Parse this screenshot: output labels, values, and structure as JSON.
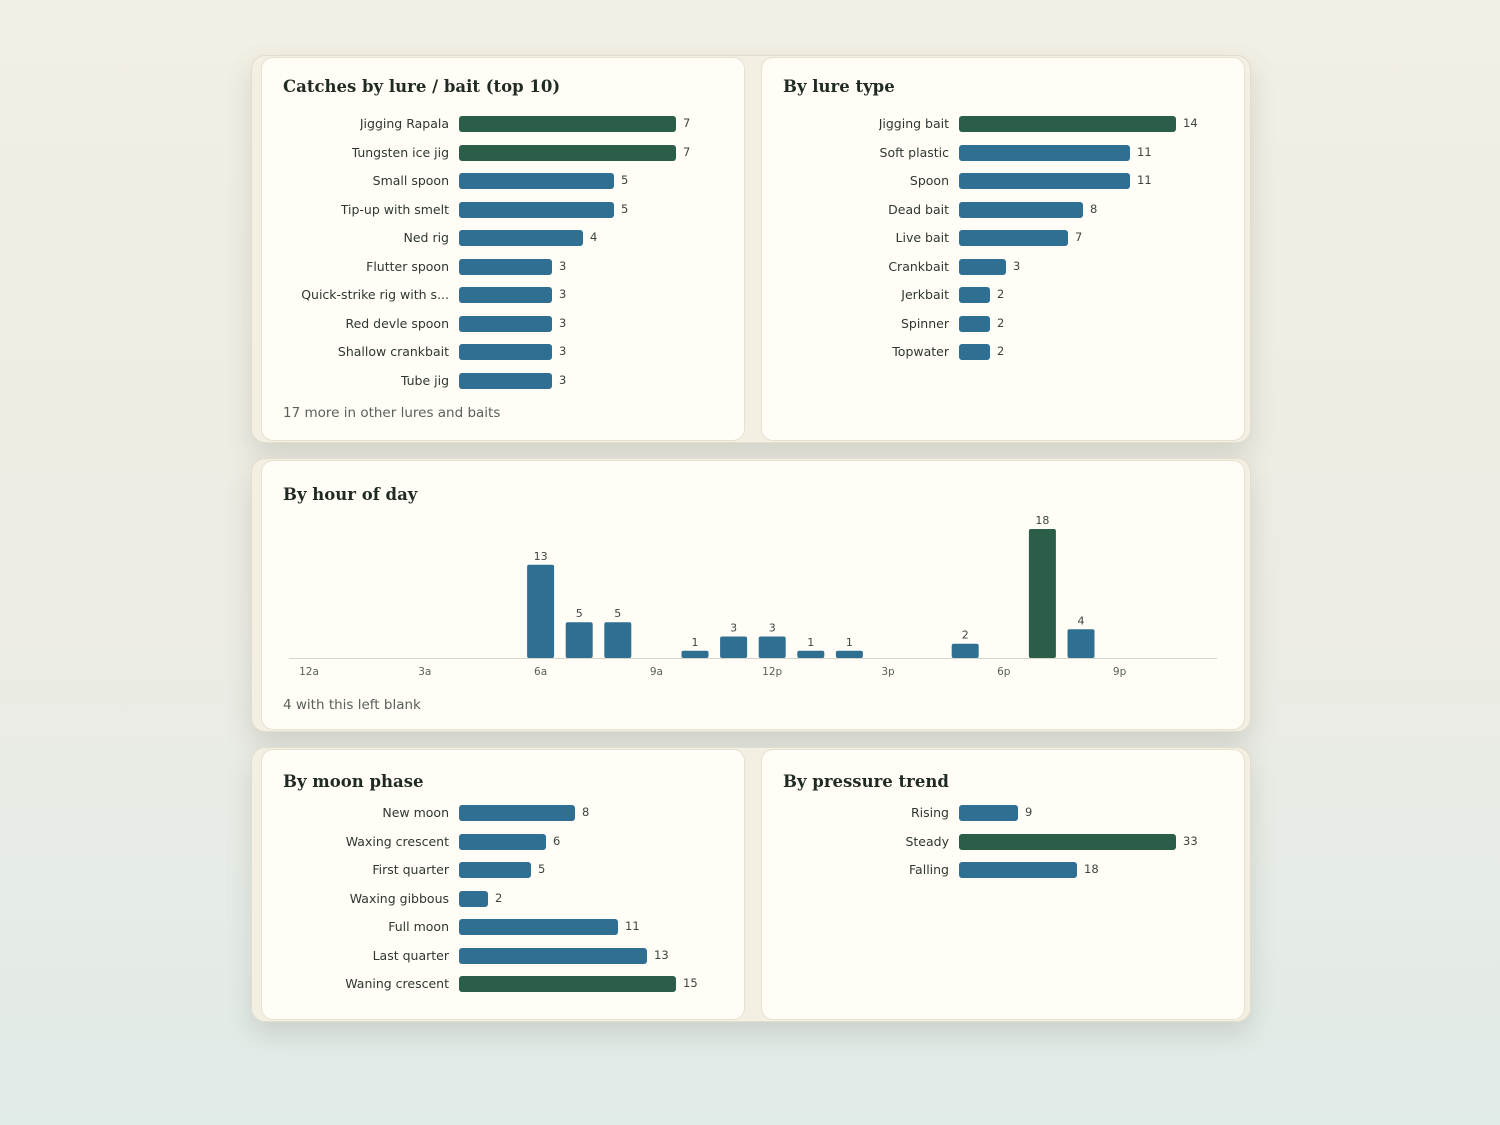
{
  "colors": {
    "bar": "#2f6f91",
    "bar_top": "#2b5e48",
    "card": "#fffdf6",
    "background": "#f2efe4"
  },
  "lure_card": {
    "title": "Catches by lure / bait (top 10)",
    "note": "17 more in other lures and baits"
  },
  "lure_type_card": {
    "title": "By lure type"
  },
  "hour_card": {
    "title": "By hour of day",
    "note": "4 with this left blank"
  },
  "moon_card": {
    "title": "By moon phase"
  },
  "pressure_card": {
    "title": "By pressure trend"
  },
  "chart_data": [
    {
      "id": "lure",
      "type": "bar",
      "orientation": "horizontal",
      "title": "Catches by lure / bait (top 10)",
      "categories": [
        "Jigging Rapala",
        "Tungsten ice jig",
        "Small spoon",
        "Tip-up with smelt",
        "Ned rig",
        "Flutter spoon",
        "Quick-strike rig with s...",
        "Red devle spoon",
        "Shallow crankbait",
        "Tube jig"
      ],
      "values": [
        7,
        7,
        5,
        5,
        4,
        3,
        3,
        3,
        3,
        3
      ],
      "highlight": [
        0,
        1
      ],
      "grid": false
    },
    {
      "id": "lure-type",
      "type": "bar",
      "orientation": "horizontal",
      "title": "By lure type",
      "categories": [
        "Jigging bait",
        "Soft plastic",
        "Spoon",
        "Dead bait",
        "Live bait",
        "Crankbait",
        "Jerkbait",
        "Spinner",
        "Topwater"
      ],
      "values": [
        14,
        11,
        11,
        8,
        7,
        3,
        2,
        2,
        2
      ],
      "highlight": [
        0
      ],
      "grid": false
    },
    {
      "id": "hour",
      "type": "bar",
      "orientation": "vertical",
      "title": "By hour of day",
      "x": [
        0,
        1,
        2,
        3,
        4,
        5,
        6,
        7,
        8,
        9,
        10,
        11,
        12,
        13,
        14,
        15,
        16,
        17,
        18,
        19,
        20,
        21,
        22,
        23
      ],
      "values": [
        0,
        0,
        0,
        0,
        0,
        0,
        13,
        5,
        5,
        0,
        1,
        3,
        3,
        1,
        1,
        0,
        0,
        2,
        0,
        18,
        4,
        0,
        0,
        0
      ],
      "xticks": [
        {
          "hour": 0,
          "label": "12a"
        },
        {
          "hour": 3,
          "label": "3a"
        },
        {
          "hour": 6,
          "label": "6a"
        },
        {
          "hour": 9,
          "label": "9a"
        },
        {
          "hour": 12,
          "label": "12p"
        },
        {
          "hour": 15,
          "label": "3p"
        },
        {
          "hour": 18,
          "label": "6p"
        },
        {
          "hour": 21,
          "label": "9p"
        }
      ],
      "ylim": [
        0,
        18
      ],
      "highlight": [
        19
      ],
      "grid": false
    },
    {
      "id": "moon",
      "type": "bar",
      "orientation": "horizontal",
      "title": "By moon phase",
      "categories": [
        "New moon",
        "Waxing crescent",
        "First quarter",
        "Waxing gibbous",
        "Full moon",
        "Last quarter",
        "Waning crescent"
      ],
      "values": [
        8,
        6,
        5,
        2,
        11,
        13,
        15
      ],
      "highlight": [
        6
      ],
      "grid": false
    },
    {
      "id": "pressure",
      "type": "bar",
      "orientation": "horizontal",
      "title": "By pressure trend",
      "categories": [
        "Rising",
        "Steady",
        "Falling"
      ],
      "values": [
        9,
        33,
        18
      ],
      "highlight": [
        1
      ],
      "grid": false
    }
  ]
}
